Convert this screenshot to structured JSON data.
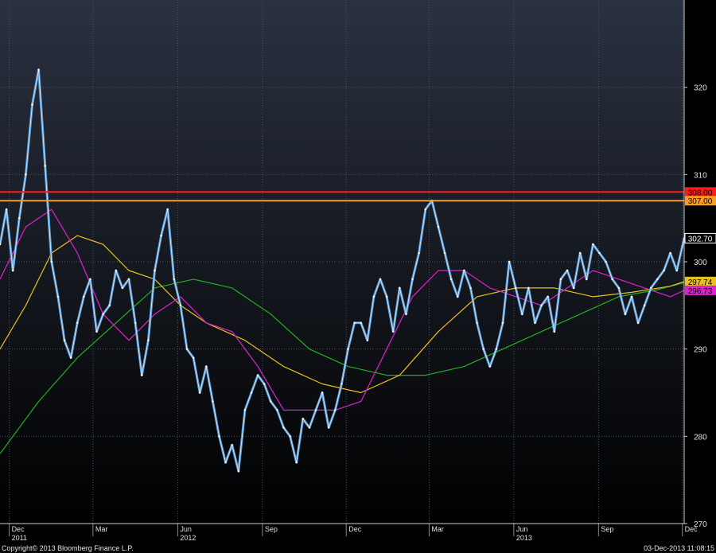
{
  "footer": {
    "copyright": "Copyright© 2013 Bloomberg Finance L.P.",
    "timestamp": "03-Dec-2013 11:08:15"
  },
  "colors": {
    "background_top": "#2a3140",
    "background_bottom": "#000000",
    "price": "#5b9bd5",
    "price_highlight": "#ffffff",
    "ma_short": "#e020d0",
    "ma_mid": "#e8c020",
    "ma_long": "#22b022",
    "resistance_red": "#ff1a1a",
    "resistance_orange": "#ff9a20",
    "last_price_label": "#000000"
  },
  "chart_data": {
    "type": "line",
    "title": "",
    "xlabel": "",
    "ylabel": "",
    "ylim": [
      270,
      330
    ],
    "xlim": [
      "2011-11-21",
      "2013-12-03"
    ],
    "grid": true,
    "y_ticks": [
      270,
      280,
      290,
      300,
      310,
      320
    ],
    "x_month_ticks": [
      {
        "date": "2011-12-01",
        "label": "Dec",
        "year": "2011"
      },
      {
        "date": "2012-03-01",
        "label": "Mar",
        "year": ""
      },
      {
        "date": "2012-06-01",
        "label": "Jun",
        "year": "2012"
      },
      {
        "date": "2012-09-01",
        "label": "Sep",
        "year": ""
      },
      {
        "date": "2012-12-01",
        "label": "Dec",
        "year": ""
      },
      {
        "date": "2013-03-01",
        "label": "Mar",
        "year": ""
      },
      {
        "date": "2013-06-01",
        "label": "Jun",
        "year": "2013"
      },
      {
        "date": "2013-09-01",
        "label": "Sep",
        "year": ""
      },
      {
        "date": "2013-12-01",
        "label": "Dec",
        "year": ""
      }
    ],
    "horizontal_lines": [
      {
        "value": 308.0,
        "label": "308.00",
        "color": "#ff1a1a"
      },
      {
        "value": 307.0,
        "label": "307.00",
        "color": "#ff9a20"
      }
    ],
    "value_labels": [
      {
        "value": 302.7,
        "label": "302.70",
        "color": "#000000",
        "text_color": "#ffffff",
        "border": "#ffffff"
      },
      {
        "value": 297.74,
        "label": "297.74",
        "color": "#e8c020",
        "text_color": "#000000"
      },
      {
        "value": 296.73,
        "label": "296.73",
        "color": "#e020d0",
        "text_color": "#000000"
      }
    ],
    "series": [
      {
        "key": "price",
        "style": "price",
        "x": [
          "2011-11-21",
          "2011-11-28",
          "2011-12-05",
          "2011-12-12",
          "2011-12-19",
          "2011-12-26",
          "2012-01-02",
          "2012-01-09",
          "2012-01-16",
          "2012-01-23",
          "2012-01-30",
          "2012-02-06",
          "2012-02-13",
          "2012-02-20",
          "2012-02-27",
          "2012-03-05",
          "2012-03-12",
          "2012-03-19",
          "2012-03-26",
          "2012-04-02",
          "2012-04-09",
          "2012-04-16",
          "2012-04-23",
          "2012-04-30",
          "2012-05-07",
          "2012-05-14",
          "2012-05-21",
          "2012-05-28",
          "2012-06-04",
          "2012-06-11",
          "2012-06-18",
          "2012-06-25",
          "2012-07-02",
          "2012-07-09",
          "2012-07-16",
          "2012-07-23",
          "2012-07-30",
          "2012-08-06",
          "2012-08-13",
          "2012-08-20",
          "2012-08-27",
          "2012-09-03",
          "2012-09-10",
          "2012-09-17",
          "2012-09-24",
          "2012-10-01",
          "2012-10-08",
          "2012-10-15",
          "2012-10-22",
          "2012-10-29",
          "2012-11-05",
          "2012-11-12",
          "2012-11-19",
          "2012-11-26",
          "2012-12-03",
          "2012-12-10",
          "2012-12-17",
          "2012-12-24",
          "2012-12-31",
          "2013-01-07",
          "2013-01-14",
          "2013-01-21",
          "2013-01-28",
          "2013-02-04",
          "2013-02-11",
          "2013-02-18",
          "2013-02-25",
          "2013-03-04",
          "2013-03-11",
          "2013-03-18",
          "2013-03-25",
          "2013-04-01",
          "2013-04-08",
          "2013-04-15",
          "2013-04-22",
          "2013-04-29",
          "2013-05-06",
          "2013-05-13",
          "2013-05-20",
          "2013-05-27",
          "2013-06-03",
          "2013-06-10",
          "2013-06-17",
          "2013-06-24",
          "2013-07-01",
          "2013-07-08",
          "2013-07-15",
          "2013-07-22",
          "2013-07-29",
          "2013-08-05",
          "2013-08-12",
          "2013-08-19",
          "2013-08-26",
          "2013-09-02",
          "2013-09-09",
          "2013-09-16",
          "2013-09-23",
          "2013-09-30",
          "2013-10-07",
          "2013-10-14",
          "2013-10-21",
          "2013-10-28",
          "2013-11-04",
          "2013-11-11",
          "2013-11-18",
          "2013-11-25",
          "2013-12-03"
        ],
        "values": [
          302,
          306,
          299,
          305,
          310,
          318,
          322,
          311,
          300,
          296,
          291,
          289,
          293,
          296,
          298,
          292,
          294,
          295,
          299,
          297,
          298,
          293,
          287,
          291,
          299,
          303,
          306,
          298,
          295,
          290,
          289,
          285,
          288,
          284,
          280,
          277,
          279,
          276,
          283,
          285,
          287,
          286,
          284,
          283,
          281,
          280,
          277,
          282,
          281,
          283,
          285,
          281,
          283,
          286,
          290,
          293,
          293,
          291,
          296,
          298,
          296,
          292,
          297,
          294,
          298,
          301,
          306,
          307,
          304,
          301,
          298,
          296,
          299,
          297,
          293,
          290,
          288,
          290,
          293,
          300,
          297,
          294,
          297,
          293,
          295,
          296,
          292,
          298,
          299,
          297,
          301,
          298,
          302,
          301,
          300,
          298,
          297,
          294,
          296,
          293,
          295,
          297,
          298,
          299,
          301,
          299,
          302.7
        ]
      },
      {
        "key": "ma_short",
        "style": "ma_short",
        "x": [
          "2011-11-21",
          "2011-12-19",
          "2012-01-16",
          "2012-02-13",
          "2012-03-12",
          "2012-04-09",
          "2012-05-07",
          "2012-06-04",
          "2012-07-02",
          "2012-07-30",
          "2012-08-27",
          "2012-09-24",
          "2012-10-22",
          "2012-11-19",
          "2012-12-17",
          "2013-01-14",
          "2013-02-11",
          "2013-03-11",
          "2013-04-08",
          "2013-05-06",
          "2013-06-03",
          "2013-07-01",
          "2013-07-29",
          "2013-08-26",
          "2013-09-23",
          "2013-10-21",
          "2013-11-18",
          "2013-12-03"
        ],
        "values": [
          298,
          304,
          306,
          301,
          294,
          291,
          294,
          296,
          293,
          292,
          288,
          283,
          283,
          283,
          284,
          290,
          296,
          299,
          299,
          297,
          296,
          295,
          297,
          299,
          298,
          297,
          296,
          296.73
        ]
      },
      {
        "key": "ma_mid",
        "style": "ma_mid",
        "x": [
          "2011-11-21",
          "2011-12-19",
          "2012-01-16",
          "2012-02-13",
          "2012-03-12",
          "2012-04-09",
          "2012-05-07",
          "2012-06-04",
          "2012-07-02",
          "2012-08-13",
          "2012-09-24",
          "2012-11-05",
          "2012-12-17",
          "2013-01-28",
          "2013-03-11",
          "2013-04-22",
          "2013-06-03",
          "2013-07-15",
          "2013-08-26",
          "2013-10-07",
          "2013-11-18",
          "2013-12-03"
        ],
        "values": [
          290,
          295,
          301,
          303,
          302,
          299,
          298,
          295,
          293,
          291,
          288,
          286,
          285,
          287,
          292,
          296,
          297,
          297,
          296,
          296.5,
          297.2,
          297.74
        ]
      },
      {
        "key": "ma_long",
        "style": "ma_long",
        "x": [
          "2011-11-21",
          "2012-01-02",
          "2012-02-13",
          "2012-03-26",
          "2012-05-07",
          "2012-06-18",
          "2012-07-30",
          "2012-09-10",
          "2012-10-22",
          "2012-12-03",
          "2013-01-14",
          "2013-02-25",
          "2013-04-08",
          "2013-05-20",
          "2013-07-01",
          "2013-08-12",
          "2013-09-23",
          "2013-11-04",
          "2013-12-03"
        ],
        "values": [
          278,
          284,
          289,
          293,
          297,
          298,
          297,
          294,
          290,
          288,
          287,
          287,
          288,
          290,
          292,
          294,
          296,
          296.8,
          297.6
        ]
      }
    ]
  }
}
